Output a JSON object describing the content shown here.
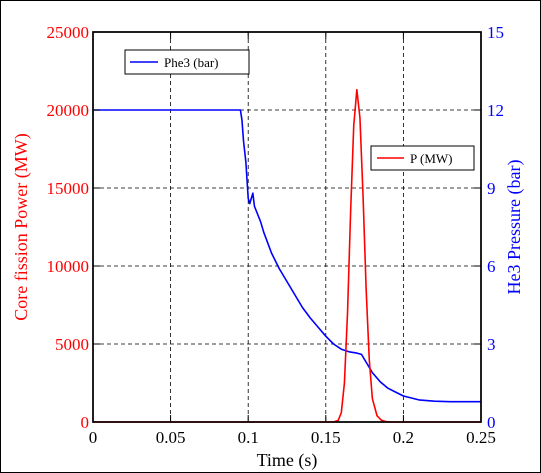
{
  "chart_data": {
    "type": "line",
    "xlabel": "Time (s)",
    "y_left_label": "Core fission Power (MW)",
    "y_right_label": "He3 Pressure (bar)",
    "xlim": [
      0,
      0.25
    ],
    "ylim_left": [
      0,
      25000
    ],
    "ylim_right": [
      0,
      15
    ],
    "x_ticks": [
      "0",
      "0.05",
      "0.1",
      "0.15",
      "0.2",
      "0.25"
    ],
    "y_left_ticks": [
      "0",
      "5000",
      "10000",
      "15000",
      "20000",
      "25000"
    ],
    "y_right_ticks": [
      "0",
      "3",
      "6",
      "9",
      "12",
      "15"
    ],
    "grid": true,
    "series": [
      {
        "name": "Phe3 (bar)",
        "axis": "right",
        "color": "#0000ff",
        "legend_position": "top-left",
        "points": [
          [
            0,
            12.0
          ],
          [
            0.05,
            12.0
          ],
          [
            0.095,
            12.0
          ],
          [
            0.096,
            11.6
          ],
          [
            0.097,
            10.8
          ],
          [
            0.0985,
            10.0
          ],
          [
            0.1,
            8.6
          ],
          [
            0.101,
            8.4
          ],
          [
            0.102,
            8.6
          ],
          [
            0.103,
            8.8
          ],
          [
            0.104,
            8.3
          ],
          [
            0.106,
            8.0
          ],
          [
            0.108,
            7.7
          ],
          [
            0.11,
            7.3
          ],
          [
            0.115,
            6.5
          ],
          [
            0.12,
            5.9
          ],
          [
            0.125,
            5.4
          ],
          [
            0.13,
            4.9
          ],
          [
            0.135,
            4.4
          ],
          [
            0.14,
            4.0
          ],
          [
            0.145,
            3.65
          ],
          [
            0.15,
            3.3
          ],
          [
            0.155,
            3.0
          ],
          [
            0.16,
            2.8
          ],
          [
            0.165,
            2.7
          ],
          [
            0.17,
            2.65
          ],
          [
            0.173,
            2.6
          ],
          [
            0.175,
            2.4
          ],
          [
            0.18,
            1.9
          ],
          [
            0.185,
            1.55
          ],
          [
            0.19,
            1.3
          ],
          [
            0.195,
            1.15
          ],
          [
            0.2,
            1.0
          ],
          [
            0.21,
            0.85
          ],
          [
            0.22,
            0.8
          ],
          [
            0.23,
            0.78
          ],
          [
            0.25,
            0.78
          ]
        ]
      },
      {
        "name": "P (MW)",
        "axis": "left",
        "color": "#ff0000",
        "legend_position": "top-right",
        "points": [
          [
            0,
            0
          ],
          [
            0.15,
            0
          ],
          [
            0.155,
            0
          ],
          [
            0.158,
            100
          ],
          [
            0.16,
            600
          ],
          [
            0.162,
            2500
          ],
          [
            0.164,
            7000
          ],
          [
            0.166,
            13500
          ],
          [
            0.168,
            19000
          ],
          [
            0.17,
            21300
          ],
          [
            0.172,
            19500
          ],
          [
            0.174,
            14500
          ],
          [
            0.176,
            8500
          ],
          [
            0.178,
            4000
          ],
          [
            0.18,
            1500
          ],
          [
            0.183,
            400
          ],
          [
            0.186,
            100
          ],
          [
            0.19,
            0
          ],
          [
            0.25,
            0
          ]
        ]
      }
    ]
  }
}
